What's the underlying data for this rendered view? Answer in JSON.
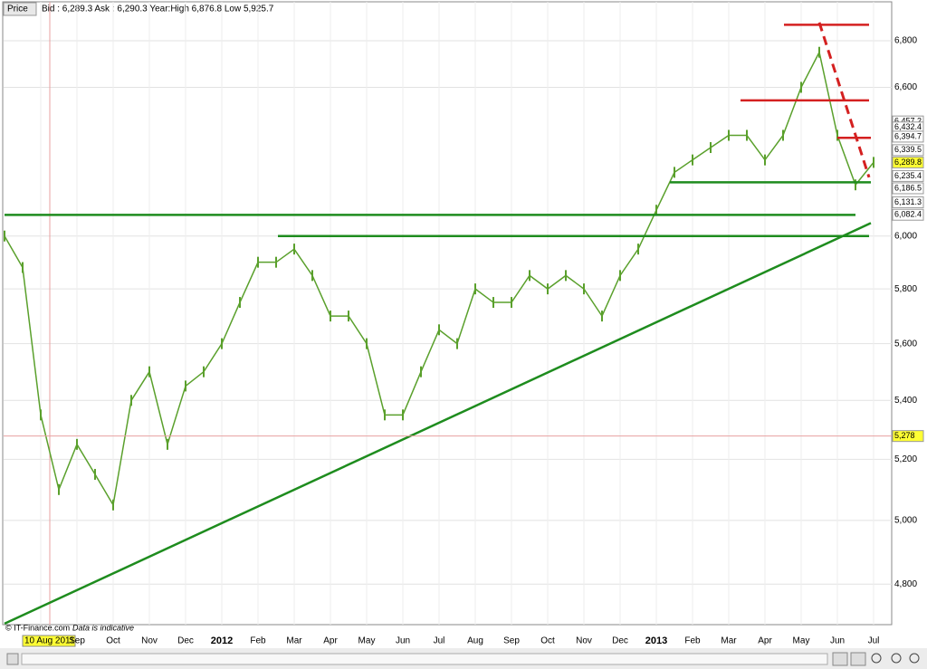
{
  "chart_data": {
    "type": "line",
    "tab": "Price",
    "title": "Bid : 6,289.3 Ask : 6,290.3 Year:High 6,876.8 Low 5,925.7",
    "footer": "© IT-Finance.com",
    "note": "Data is indicative",
    "log_scale": true,
    "grid": true,
    "categories": [
      null,
      null,
      "10 Aug 2011",
      null,
      "Sep",
      null,
      "Oct",
      null,
      "Nov",
      null,
      "Dec",
      null,
      "2012",
      null,
      "Feb",
      null,
      "Mar",
      null,
      "Apr",
      null,
      "May",
      null,
      "Jun",
      null,
      "Jul",
      null,
      "Aug",
      null,
      "Sep",
      null,
      "Oct",
      null,
      "Nov",
      null,
      "Dec",
      null,
      "2013",
      null,
      "Feb",
      null,
      "Mar",
      null,
      "Apr",
      null,
      "May",
      null,
      "Jun",
      null,
      "Jul"
    ],
    "series": [
      {
        "color": "#5aa02c",
        "values": [
          6000,
          5880,
          5350,
          5100,
          5250,
          5150,
          5050,
          5400,
          5500,
          5250,
          5450,
          5500,
          5600,
          5750,
          5900,
          5900,
          5950,
          5850,
          5700,
          5700,
          5600,
          5350,
          5350,
          5500,
          5650,
          5600,
          5800,
          5750,
          5750,
          5850,
          5800,
          5850,
          5800,
          5700,
          5850,
          5950,
          6100,
          6250,
          6300,
          6350,
          6400,
          6400,
          6300,
          6400,
          6600,
          6750,
          6400,
          6200,
          6290
        ]
      }
    ],
    "ylim": [
      4677,
      6980
    ],
    "yticks": [
      {
        "value": 4800,
        "label": "4,800"
      },
      {
        "value": 5000,
        "label": "5,000"
      },
      {
        "value": 5200,
        "label": "5,200"
      },
      {
        "value": 5400,
        "label": "5,400"
      },
      {
        "value": 5600,
        "label": "5,600"
      },
      {
        "value": 5800,
        "label": "5,800"
      },
      {
        "value": 6000,
        "label": "6,000"
      },
      {
        "value": 6600,
        "label": "6,600"
      },
      {
        "value": 6800,
        "label": "6,800"
      }
    ],
    "support_lines": [
      {
        "color": "#1e8c1e",
        "value": 6082
      },
      {
        "color": "#1e8c1e",
        "value": 6000
      },
      {
        "color": "#1e8c1e",
        "value": 6210
      }
    ],
    "resistance_lines": [
      {
        "color": "#d42020",
        "value": 6870
      },
      {
        "color": "#d42020",
        "value": 6545
      },
      {
        "color": "#d42020",
        "value": 6390
      }
    ],
    "trend_lines": [
      {
        "color": "#1e8c1e",
        "values": [
          4680,
          6050
        ]
      },
      {
        "color": "#d42020",
        "values": [
          6880,
          6230
        ]
      }
    ],
    "price_tags": [
      {
        "value": 6457.2,
        "label": "6,457.2",
        "color": "#ffffff"
      },
      {
        "value": 6432.4,
        "label": "6,432.4",
        "color": "#ffffff"
      },
      {
        "value": 6394.7,
        "label": "6,394.7",
        "color": "#ffffff"
      },
      {
        "value": 6339.5,
        "label": "6,339.5",
        "color": "#ffffff"
      },
      {
        "value": 6289.8,
        "label": "6,289.8",
        "color": "#ffff33"
      },
      {
        "value": 6235.4,
        "label": "6,235.4",
        "color": "#ffffff"
      },
      {
        "value": 6186.5,
        "label": "6,186.5",
        "color": "#ffffff"
      },
      {
        "value": 6131.3,
        "label": "6,131.3",
        "color": "#ffffff"
      },
      {
        "value": 6082.4,
        "label": "6,082.4",
        "color": "#ffffff"
      },
      {
        "value": 5278,
        "label": "5,278",
        "color": "#ffff33"
      }
    ]
  }
}
